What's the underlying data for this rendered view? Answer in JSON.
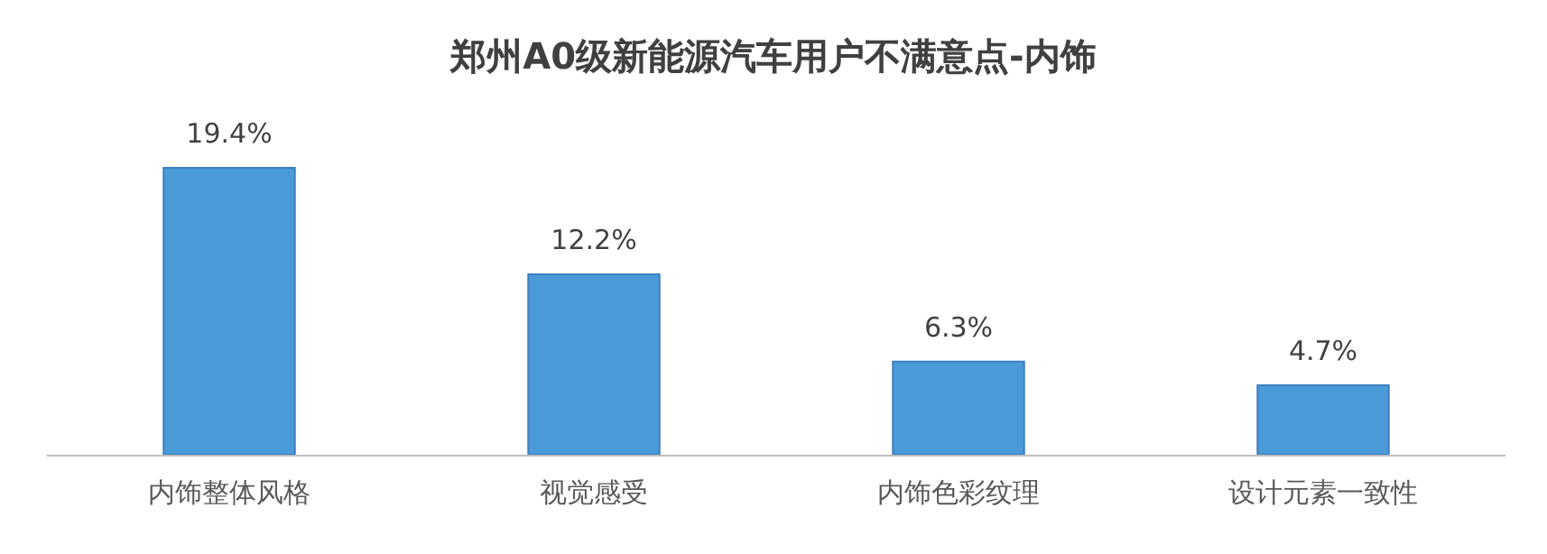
{
  "chart_data": {
    "type": "bar",
    "title": "郑州A0级新能源汽车用户不满意点-内饰",
    "categories": [
      "内饰整体风格",
      "视觉感受",
      "内饰色彩纹理",
      "设计元素一致性"
    ],
    "values": [
      19.4,
      12.2,
      6.3,
      4.7
    ],
    "value_labels": [
      "19.4%",
      "12.2%",
      "6.3%",
      "4.7%"
    ],
    "color": "#4a9ad8"
  }
}
